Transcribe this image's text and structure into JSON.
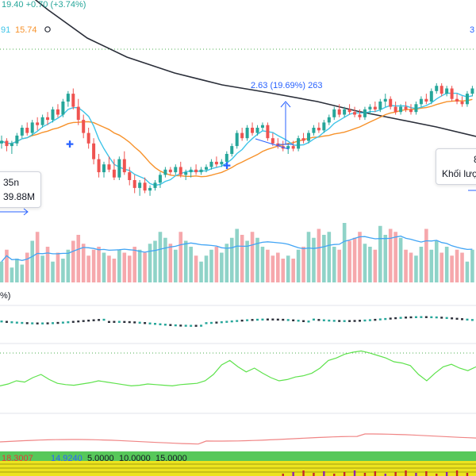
{
  "header": {
    "price_line": "19.40 +0.70 (+3.74%)",
    "ma_value_cut": "91",
    "ma_value": "15.74",
    "right_cut": "3"
  },
  "measure": {
    "label": "2.63 (19.69%) 263"
  },
  "left_tip": {
    "line1": "35n",
    "line2": "39.88M"
  },
  "right_tip": {
    "line1": "8 th",
    "line2": "Khối lượ"
  },
  "osc_percent_cut": "%)",
  "bottom_strip": {
    "left_cut": "18.3007",
    "value_green": "14.9240",
    "levels": [
      "5.0000",
      "10.0000",
      "15.0000"
    ]
  },
  "colors": {
    "up": "#26a69a",
    "down": "#ef5350",
    "ma_fast": "#3ec4e8",
    "ma_slow": "#f7922b",
    "ma_long": "#2a2e39",
    "measure": "#2962ff",
    "vol_up": "#8fd3c8",
    "vol_down": "#f6a8ac",
    "vol_ma": "#42a5f5",
    "osc_green": "#5ee24c",
    "osc_red": "#f08585",
    "dotted": "#4caf50"
  },
  "chart_data": {
    "type": "candlestick",
    "price": [
      [
        13.9,
        14.2,
        13.7,
        14.0
      ],
      [
        14.0,
        14.1,
        13.6,
        13.8
      ],
      [
        13.8,
        14.0,
        13.5,
        13.9
      ],
      [
        13.9,
        14.3,
        13.8,
        14.2
      ],
      [
        14.2,
        14.6,
        14.1,
        14.5
      ],
      [
        14.5,
        14.7,
        14.2,
        14.3
      ],
      [
        14.3,
        14.8,
        14.2,
        14.7
      ],
      [
        14.7,
        14.9,
        14.4,
        14.6
      ],
      [
        14.6,
        15.0,
        14.5,
        14.9
      ],
      [
        14.9,
        15.1,
        14.6,
        14.8
      ],
      [
        14.8,
        15.3,
        14.7,
        15.2
      ],
      [
        15.2,
        15.4,
        14.9,
        15.0
      ],
      [
        15.0,
        15.6,
        14.9,
        15.5
      ],
      [
        15.5,
        15.9,
        15.3,
        15.8
      ],
      [
        15.8,
        16.0,
        15.2,
        15.3
      ],
      [
        15.3,
        15.6,
        14.6,
        14.8
      ],
      [
        14.8,
        15.0,
        14.1,
        14.3
      ],
      [
        14.3,
        14.5,
        13.7,
        13.9
      ],
      [
        13.9,
        14.1,
        13.1,
        13.3
      ],
      [
        13.3,
        13.5,
        12.6,
        12.8
      ],
      [
        12.8,
        13.2,
        12.6,
        13.1
      ],
      [
        13.1,
        13.4,
        12.8,
        12.9
      ],
      [
        12.9,
        13.3,
        12.5,
        12.6
      ],
      [
        12.6,
        13.4,
        12.5,
        13.3
      ],
      [
        13.3,
        13.6,
        12.7,
        12.8
      ],
      [
        12.8,
        13.0,
        12.3,
        12.5
      ],
      [
        12.5,
        12.7,
        12.0,
        12.2
      ],
      [
        12.2,
        12.5,
        11.9,
        12.4
      ],
      [
        12.4,
        12.6,
        12.0,
        12.1
      ],
      [
        12.1,
        12.3,
        11.9,
        12.2
      ],
      [
        12.2,
        12.5,
        12.1,
        12.4
      ],
      [
        12.4,
        12.8,
        12.2,
        12.7
      ],
      [
        12.7,
        13.0,
        12.6,
        12.9
      ],
      [
        12.9,
        13.0,
        12.7,
        12.8
      ],
      [
        12.8,
        13.1,
        12.7,
        13.0
      ],
      [
        13.0,
        13.2,
        12.6,
        12.7
      ],
      [
        12.7,
        12.9,
        12.5,
        12.8
      ],
      [
        12.8,
        13.0,
        12.6,
        12.9
      ],
      [
        12.9,
        13.1,
        12.7,
        12.8
      ],
      [
        12.8,
        13.0,
        12.7,
        12.9
      ],
      [
        12.9,
        13.1,
        12.8,
        13.0
      ],
      [
        13.0,
        13.3,
        12.9,
        13.2
      ],
      [
        13.2,
        13.4,
        13.0,
        13.1
      ],
      [
        13.1,
        13.3,
        13.0,
        13.2
      ],
      [
        13.2,
        13.6,
        13.1,
        13.5
      ],
      [
        13.5,
        13.9,
        13.4,
        13.8
      ],
      [
        13.8,
        14.4,
        13.7,
        14.3
      ],
      [
        14.3,
        14.5,
        14.0,
        14.1
      ],
      [
        14.1,
        14.6,
        14.0,
        14.5
      ],
      [
        14.5,
        14.7,
        14.2,
        14.3
      ],
      [
        14.3,
        14.6,
        14.2,
        14.5
      ],
      [
        14.5,
        14.7,
        14.4,
        14.6
      ],
      [
        14.6,
        14.7,
        14.0,
        14.1
      ],
      [
        14.1,
        14.3,
        13.8,
        13.9
      ],
      [
        13.9,
        14.1,
        13.7,
        13.8
      ],
      [
        13.8,
        14.0,
        13.6,
        13.7
      ],
      [
        13.7,
        13.9,
        13.5,
        13.8
      ],
      [
        13.8,
        14.0,
        13.6,
        13.7
      ],
      [
        13.7,
        14.2,
        13.6,
        14.1
      ],
      [
        14.1,
        14.3,
        13.9,
        14.0
      ],
      [
        14.0,
        14.4,
        13.9,
        14.3
      ],
      [
        14.3,
        14.6,
        14.2,
        14.5
      ],
      [
        14.5,
        14.7,
        14.3,
        14.4
      ],
      [
        14.4,
        14.8,
        14.3,
        14.7
      ],
      [
        14.7,
        15.0,
        14.6,
        14.9
      ],
      [
        14.9,
        15.3,
        14.8,
        15.2
      ],
      [
        15.2,
        15.4,
        14.9,
        15.0
      ],
      [
        15.0,
        15.3,
        14.9,
        15.2
      ],
      [
        15.2,
        15.4,
        15.0,
        15.1
      ],
      [
        15.1,
        15.3,
        14.9,
        15.0
      ],
      [
        15.0,
        15.2,
        14.8,
        14.9
      ],
      [
        14.9,
        15.3,
        14.8,
        15.2
      ],
      [
        15.2,
        15.4,
        15.0,
        15.3
      ],
      [
        15.3,
        15.5,
        15.1,
        15.2
      ],
      [
        15.2,
        15.6,
        15.1,
        15.5
      ],
      [
        15.5,
        15.8,
        15.3,
        15.6
      ],
      [
        15.6,
        15.7,
        15.2,
        15.3
      ],
      [
        15.3,
        15.5,
        15.0,
        15.1
      ],
      [
        15.1,
        15.4,
        15.0,
        15.3
      ],
      [
        15.3,
        15.5,
        15.1,
        15.2
      ],
      [
        15.2,
        15.4,
        15.0,
        15.1
      ],
      [
        15.1,
        15.5,
        15.0,
        15.4
      ],
      [
        15.4,
        15.7,
        15.3,
        15.6
      ],
      [
        15.6,
        15.8,
        15.4,
        15.5
      ],
      [
        15.5,
        16.0,
        15.4,
        15.9
      ],
      [
        15.9,
        16.2,
        15.8,
        16.1
      ],
      [
        16.1,
        16.2,
        15.7,
        15.8
      ],
      [
        15.8,
        16.1,
        15.7,
        16.0
      ],
      [
        16.0,
        16.1,
        15.5,
        15.6
      ],
      [
        15.6,
        15.8,
        15.4,
        15.5
      ],
      [
        15.5,
        15.7,
        15.3,
        15.4
      ],
      [
        15.4,
        15.9,
        15.3,
        15.8
      ],
      [
        15.8,
        16.1,
        15.7,
        16.0
      ]
    ],
    "volume": [
      0.35,
      0.55,
      0.25,
      0.4,
      0.3,
      0.5,
      0.7,
      0.85,
      0.45,
      0.6,
      0.35,
      0.5,
      0.4,
      0.55,
      0.7,
      0.8,
      0.65,
      0.45,
      0.55,
      0.6,
      0.5,
      0.45,
      0.4,
      0.55,
      0.5,
      0.45,
      0.6,
      0.55,
      0.5,
      0.65,
      0.7,
      0.85,
      0.75,
      0.65,
      0.55,
      0.85,
      0.7,
      0.6,
      0.45,
      0.35,
      0.45,
      0.55,
      0.6,
      0.5,
      0.65,
      0.75,
      0.9,
      0.8,
      0.7,
      0.85,
      0.75,
      0.6,
      0.55,
      0.45,
      0.5,
      0.4,
      0.45,
      0.4,
      0.55,
      0.6,
      0.85,
      0.75,
      0.9,
      0.8,
      0.85,
      0.6,
      0.55,
      1.0,
      0.7,
      0.75,
      0.85,
      0.65,
      0.6,
      0.55,
      0.95,
      0.8,
      0.9,
      0.85,
      0.75,
      0.55,
      0.5,
      0.45,
      0.6,
      0.9,
      0.55,
      0.7,
      0.5,
      0.6,
      0.45,
      0.55,
      0.5,
      0.35,
      0.55
    ],
    "measure": {
      "value": 2.63,
      "percent": 19.69,
      "bars": 263
    },
    "oscillator_green": [
      0.42,
      0.45,
      0.5,
      0.48,
      0.55,
      0.6,
      0.52,
      0.46,
      0.44,
      0.43,
      0.45,
      0.47,
      0.5,
      0.48,
      0.46,
      0.44,
      0.42,
      0.43,
      0.45,
      0.44,
      0.43,
      0.42,
      0.44,
      0.45,
      0.46,
      0.5,
      0.6,
      0.75,
      0.82,
      0.72,
      0.64,
      0.7,
      0.62,
      0.55,
      0.5,
      0.52,
      0.56,
      0.58,
      0.62,
      0.7,
      0.82,
      0.86,
      0.92,
      0.95,
      0.97,
      0.94,
      0.9,
      0.86,
      0.8,
      0.78,
      0.74,
      0.6,
      0.5,
      0.62,
      0.72,
      0.76,
      0.7,
      0.66,
      0.72
    ]
  }
}
